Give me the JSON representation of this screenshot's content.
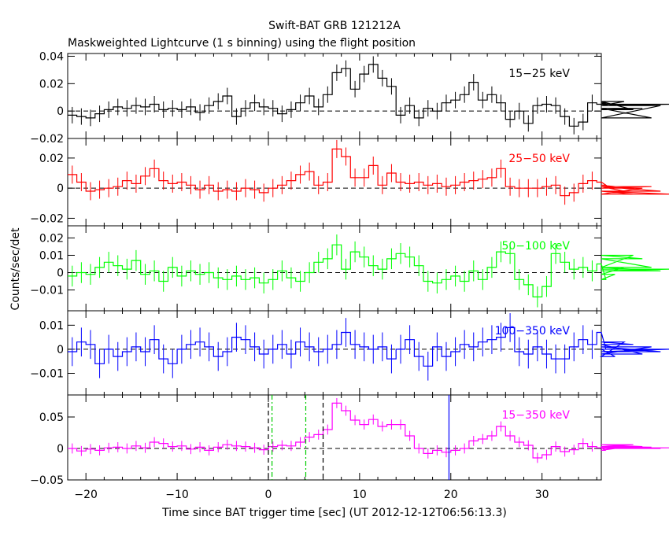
{
  "title": "Swift-BAT GRB 121212A",
  "subtitle": "Maskweighted Lightcurve (1 s binning) using the flight position",
  "ylabel": "Counts/sec/det",
  "xlabel": "Time since BAT trigger time [sec] (UT 2012-12-12T06:56:13.3)",
  "chart_data": [
    {
      "type": "line",
      "name": "15-25 keV",
      "label": "15−25 keV",
      "color": "#000000",
      "xlim": [
        -22,
        36.5
      ],
      "ylim": [
        -0.02,
        0.042
      ],
      "yticks": [
        0.04,
        0.02,
        0,
        -0.02
      ],
      "yticklabels": [
        "0.04",
        "0.02",
        "0",
        "−0.02"
      ],
      "start": -22,
      "values": [
        -0.003,
        -0.004,
        -0.005,
        -0.002,
        0.001,
        0.003,
        0.002,
        0.004,
        0.003,
        0.005,
        0.001,
        0.002,
        0.001,
        0.003,
        -0.001,
        0.004,
        0.007,
        0.011,
        -0.004,
        0.002,
        0.006,
        0.003,
        0.002,
        -0.002,
        0.001,
        0.006,
        0.011,
        0.003,
        0.012,
        0.028,
        0.031,
        0.016,
        0.027,
        0.034,
        0.024,
        0.018,
        -0.003,
        0.004,
        -0.005,
        0.002,
        0.0,
        0.006,
        0.008,
        0.012,
        0.021,
        0.008,
        0.012,
        0.006,
        -0.006,
        0.0,
        -0.009,
        0.004,
        0.005,
        0.004,
        -0.004,
        -0.011,
        -0.008,
        0.006,
        0.005,
        0.006,
        0.004,
        0.007,
        0.001,
        0.002,
        -0.005,
        0.004,
        0.005
      ],
      "errors": [
        0.006,
        0.006,
        0.006,
        0.006,
        0.006,
        0.006,
        0.006,
        0.006,
        0.006,
        0.006,
        0.006,
        0.006,
        0.006,
        0.006,
        0.006,
        0.006,
        0.006,
        0.006,
        0.006,
        0.006,
        0.006,
        0.006,
        0.006,
        0.006,
        0.006,
        0.006,
        0.006,
        0.006,
        0.006,
        0.006,
        0.006,
        0.006,
        0.006,
        0.006,
        0.006,
        0.006,
        0.006,
        0.006,
        0.006,
        0.006,
        0.006,
        0.006,
        0.006,
        0.006,
        0.006,
        0.006,
        0.006,
        0.006,
        0.006,
        0.006,
        0.006,
        0.006,
        0.006,
        0.006,
        0.006,
        0.006,
        0.006,
        0.006,
        0.006,
        0.006,
        0.006,
        0.006,
        0.006,
        0.006,
        0.006,
        0.006,
        0.006
      ]
    },
    {
      "type": "line",
      "name": "25-50 keV",
      "label": "25−50 keV",
      "color": "#ff0000",
      "xlim": [
        -22,
        36.5
      ],
      "ylim": [
        -0.025,
        0.033
      ],
      "yticks": [
        0.02,
        0,
        -0.02
      ],
      "yticklabels": [
        "0.02",
        "0",
        "−0.02"
      ],
      "start": -22,
      "values": [
        0.009,
        0.004,
        -0.002,
        -0.001,
        0.0,
        0.001,
        0.005,
        0.003,
        0.008,
        0.013,
        0.005,
        0.003,
        0.004,
        0.002,
        -0.001,
        0.002,
        -0.002,
        -0.001,
        -0.002,
        0.0,
        -0.001,
        -0.003,
        0.0,
        0.002,
        0.005,
        0.009,
        0.011,
        0.002,
        0.004,
        0.026,
        0.021,
        0.007,
        0.007,
        0.015,
        0.002,
        0.01,
        0.004,
        0.003,
        0.004,
        0.002,
        0.003,
        0.001,
        0.002,
        0.004,
        0.005,
        0.006,
        0.007,
        0.013,
        0.001,
        0.0,
        0.0,
        0.0,
        0.001,
        0.002,
        -0.005,
        -0.003,
        0.003,
        0.005,
        0.004,
        0.002,
        0.001,
        -0.002,
        -0.004,
        0.0,
        0.001,
        -0.002,
        -0.004
      ],
      "errors": [
        0.006,
        0.006,
        0.006,
        0.006,
        0.006,
        0.006,
        0.006,
        0.006,
        0.006,
        0.006,
        0.006,
        0.006,
        0.006,
        0.006,
        0.006,
        0.006,
        0.006,
        0.006,
        0.006,
        0.006,
        0.006,
        0.006,
        0.006,
        0.006,
        0.006,
        0.006,
        0.006,
        0.006,
        0.006,
        0.006,
        0.006,
        0.006,
        0.006,
        0.006,
        0.006,
        0.006,
        0.006,
        0.006,
        0.006,
        0.006,
        0.006,
        0.006,
        0.006,
        0.006,
        0.006,
        0.006,
        0.006,
        0.006,
        0.006,
        0.006,
        0.006,
        0.006,
        0.006,
        0.006,
        0.006,
        0.006,
        0.006,
        0.006,
        0.006,
        0.006,
        0.006,
        0.006,
        0.006,
        0.006,
        0.006,
        0.006,
        0.006
      ]
    },
    {
      "type": "line",
      "name": "50-100 keV",
      "label": "50−100 keV",
      "color": "#00ff00",
      "xlim": [
        -22,
        36.5
      ],
      "ylim": [
        -0.022,
        0.027
      ],
      "yticks": [
        0.02,
        0.01,
        0,
        -0.01
      ],
      "yticklabels": [
        "0.02",
        "0.01",
        "0",
        "−0.01"
      ],
      "start": -22,
      "values": [
        -0.002,
        0.0,
        -0.001,
        0.003,
        0.006,
        0.004,
        0.002,
        0.007,
        -0.001,
        0.001,
        -0.005,
        0.003,
        -0.002,
        0.001,
        -0.001,
        0.0,
        -0.003,
        -0.004,
        -0.002,
        -0.004,
        -0.003,
        -0.006,
        -0.004,
        0.001,
        -0.003,
        -0.005,
        0.0,
        0.006,
        0.008,
        0.016,
        0.002,
        0.012,
        0.009,
        0.004,
        0.002,
        0.008,
        0.011,
        0.009,
        0.004,
        -0.005,
        -0.006,
        -0.004,
        -0.002,
        -0.005,
        0.001,
        -0.004,
        0.003,
        0.012,
        0.011,
        -0.004,
        -0.007,
        -0.014,
        -0.008,
        0.011,
        0.006,
        0.002,
        0.003,
        0.001,
        0.005,
        -0.004,
        -0.001,
        0.003,
        0.01,
        0.008,
        0.003,
        0.001,
        0.002
      ],
      "errors": [
        0.006,
        0.006,
        0.006,
        0.006,
        0.006,
        0.006,
        0.006,
        0.006,
        0.006,
        0.006,
        0.006,
        0.006,
        0.006,
        0.006,
        0.006,
        0.006,
        0.006,
        0.006,
        0.006,
        0.006,
        0.006,
        0.006,
        0.006,
        0.006,
        0.006,
        0.006,
        0.006,
        0.006,
        0.006,
        0.006,
        0.006,
        0.006,
        0.006,
        0.006,
        0.006,
        0.006,
        0.006,
        0.006,
        0.006,
        0.006,
        0.006,
        0.006,
        0.006,
        0.006,
        0.006,
        0.006,
        0.006,
        0.006,
        0.006,
        0.006,
        0.006,
        0.006,
        0.006,
        0.006,
        0.006,
        0.006,
        0.006,
        0.006,
        0.006,
        0.006,
        0.006,
        0.006,
        0.006,
        0.006,
        0.006,
        0.006,
        0.006
      ]
    },
    {
      "type": "line",
      "name": "100-350 keV",
      "label": "100−350 keV",
      "color": "#0000ff",
      "xlim": [
        -22,
        36.5
      ],
      "ylim": [
        -0.019,
        0.016
      ],
      "yticks": [
        0.01,
        0,
        -0.01
      ],
      "yticklabels": [
        "0.01",
        "0",
        "−0.01"
      ],
      "start": -22,
      "values": [
        -0.001,
        0.003,
        0.002,
        -0.006,
        0.0,
        -0.003,
        -0.001,
        0.001,
        -0.001,
        0.004,
        -0.004,
        -0.006,
        0.0,
        0.002,
        0.003,
        0.001,
        -0.003,
        -0.001,
        0.005,
        0.004,
        0.001,
        -0.002,
        0.0,
        0.002,
        -0.002,
        0.003,
        0.001,
        -0.001,
        0.0,
        0.002,
        0.007,
        0.002,
        0.001,
        0.0,
        0.001,
        -0.004,
        0.0,
        0.004,
        -0.003,
        -0.007,
        0.001,
        -0.003,
        -0.001,
        0.002,
        0.001,
        0.003,
        0.004,
        0.005,
        0.009,
        -0.001,
        -0.002,
        0.001,
        -0.002,
        -0.004,
        -0.004,
        0.001,
        0.004,
        0.002,
        0.007,
        0.0,
        -0.003,
        0.003,
        0.002,
        -0.002,
        0.001,
        -0.001,
        0.0
      ],
      "errors": [
        0.006,
        0.006,
        0.006,
        0.006,
        0.006,
        0.006,
        0.006,
        0.006,
        0.006,
        0.006,
        0.006,
        0.006,
        0.006,
        0.006,
        0.006,
        0.006,
        0.006,
        0.006,
        0.006,
        0.006,
        0.006,
        0.006,
        0.006,
        0.006,
        0.006,
        0.006,
        0.006,
        0.006,
        0.006,
        0.006,
        0.006,
        0.006,
        0.006,
        0.006,
        0.006,
        0.006,
        0.006,
        0.006,
        0.006,
        0.006,
        0.006,
        0.006,
        0.006,
        0.006,
        0.006,
        0.006,
        0.006,
        0.006,
        0.006,
        0.006,
        0.006,
        0.006,
        0.006,
        0.006,
        0.006,
        0.006,
        0.006,
        0.006,
        0.006,
        0.006,
        0.006,
        0.006,
        0.006,
        0.006,
        0.006,
        0.006,
        0.006
      ]
    },
    {
      "type": "line",
      "name": "15-350 keV",
      "label": "15−350 keV",
      "color": "#ff00ff",
      "xlim": [
        -22,
        36.5
      ],
      "ylim": [
        -0.05,
        0.085
      ],
      "yticks": [
        0.05,
        0,
        -0.05
      ],
      "yticklabels": [
        "0.05",
        "0",
        "−0.05"
      ],
      "start": -22,
      "values": [
        0.0,
        -0.004,
        -0.001,
        -0.003,
        0.001,
        0.002,
        0.0,
        0.004,
        0.001,
        0.01,
        0.008,
        0.003,
        0.004,
        -0.001,
        0.002,
        -0.003,
        0.002,
        0.006,
        0.004,
        0.003,
        0.001,
        -0.002,
        0.003,
        0.005,
        0.004,
        0.01,
        0.018,
        0.022,
        0.03,
        0.072,
        0.06,
        0.045,
        0.038,
        0.046,
        0.035,
        0.038,
        0.038,
        0.02,
        0.0,
        -0.008,
        -0.003,
        -0.006,
        -0.003,
        0.0,
        0.012,
        0.015,
        0.02,
        0.035,
        0.02,
        0.01,
        0.005,
        -0.015,
        -0.01,
        0.003,
        -0.005,
        -0.002,
        0.008,
        0.003,
        0.001,
        -0.003,
        0.0,
        0.003,
        0.006,
        0.003,
        0.002,
        0.0,
        0.001
      ],
      "errors": [
        0.008,
        0.008,
        0.008,
        0.008,
        0.008,
        0.008,
        0.008,
        0.008,
        0.008,
        0.008,
        0.008,
        0.008,
        0.008,
        0.008,
        0.008,
        0.008,
        0.008,
        0.008,
        0.008,
        0.008,
        0.008,
        0.008,
        0.008,
        0.008,
        0.008,
        0.008,
        0.008,
        0.008,
        0.008,
        0.008,
        0.008,
        0.008,
        0.008,
        0.008,
        0.008,
        0.008,
        0.008,
        0.008,
        0.008,
        0.008,
        0.008,
        0.008,
        0.008,
        0.008,
        0.008,
        0.008,
        0.008,
        0.008,
        0.008,
        0.008,
        0.008,
        0.008,
        0.008,
        0.008,
        0.008,
        0.008,
        0.008,
        0.008,
        0.008,
        0.008,
        0.008,
        0.008,
        0.008,
        0.008,
        0.008,
        0.008,
        0.008
      ],
      "vlines": [
        {
          "x": 0,
          "color": "#000000",
          "style": "dashed"
        },
        {
          "x": 6,
          "color": "#000000",
          "style": "dashed"
        },
        {
          "x": 0.4,
          "color": "#00cc00",
          "style": "dashdot"
        },
        {
          "x": 4.1,
          "color": "#00cc00",
          "style": "dashdot"
        },
        {
          "x": 19.8,
          "color": "#0000ff",
          "style": "solid"
        }
      ]
    }
  ],
  "xticks": [
    -20,
    -10,
    0,
    10,
    20,
    30
  ],
  "xticklabels": [
    "−20",
    "−10",
    "0",
    "10",
    "20",
    "30"
  ]
}
